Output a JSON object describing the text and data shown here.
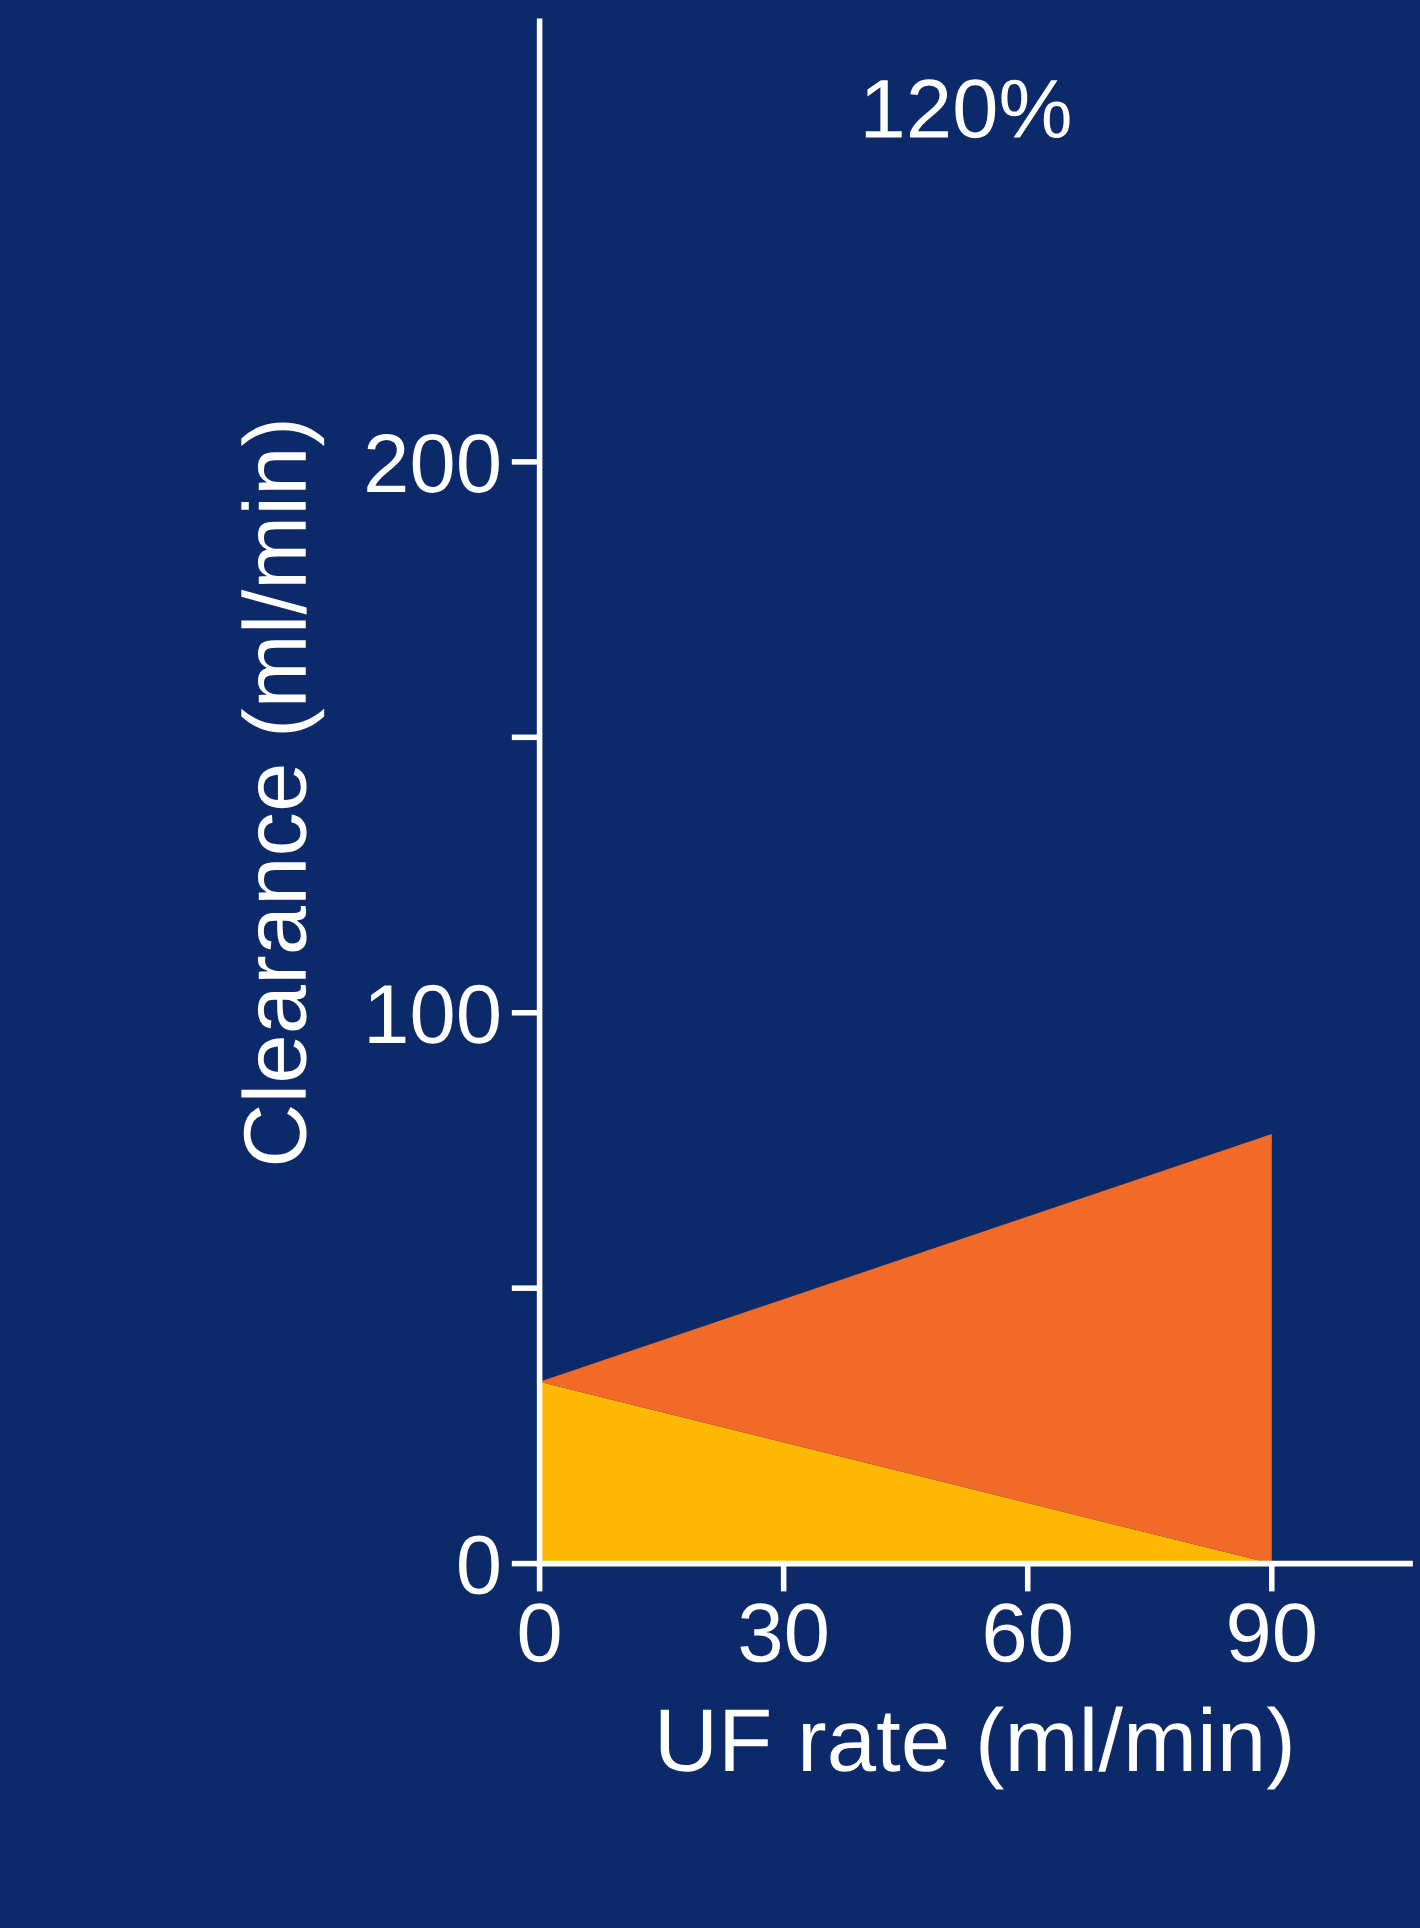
{
  "chart_data": {
    "type": "area",
    "stacked": true,
    "title": "120%",
    "xlabel": "UF rate (ml/min)",
    "ylabel": "Clearance (ml/min)",
    "x": [
      0,
      90
    ],
    "series": [
      {
        "color": "#fdb705",
        "values": [
          33,
          0
        ]
      },
      {
        "color": "#f26a27",
        "values": [
          0,
          78
        ]
      }
    ],
    "xlim": [
      0,
      107
    ],
    "ylim": [
      0,
      280
    ],
    "xticks": [
      0,
      30,
      60,
      90
    ],
    "yticks": [
      0,
      {
        "value": 50,
        "label": null
      },
      100,
      {
        "value": 150,
        "label": null
      },
      200
    ],
    "grid": false,
    "legend": false
  }
}
